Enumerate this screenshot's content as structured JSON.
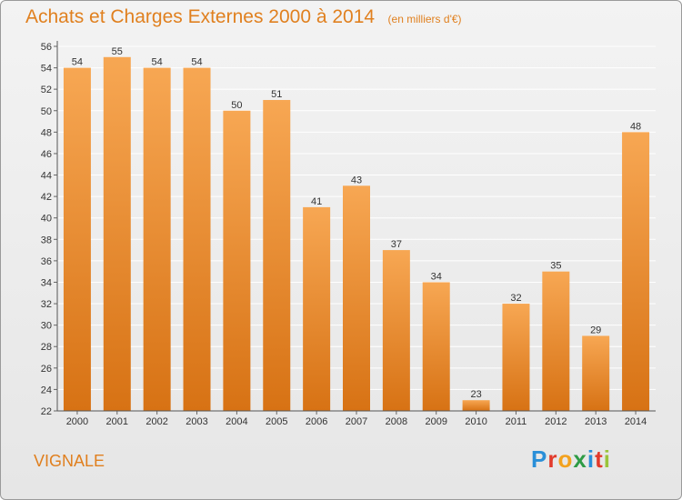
{
  "header": {
    "title": "Achats et Charges Externes 2000 à 2014",
    "subtitle": "(en milliers d'€)"
  },
  "footer": {
    "commune": "VIGNALE",
    "logo": "Proxiti"
  },
  "colors": {
    "bar_light": "#f7a753",
    "bar_dark": "#d77214",
    "title": "#e0801f",
    "grid": "#ffffff"
  },
  "chart_data": {
    "type": "bar",
    "title": "Achats et Charges Externes 2000 à 2014",
    "subtitle": "(en milliers d'€)",
    "categories": [
      "2000",
      "2001",
      "2002",
      "2003",
      "2004",
      "2005",
      "2006",
      "2007",
      "2008",
      "2009",
      "2010",
      "2011",
      "2012",
      "2013",
      "2014"
    ],
    "values": [
      54,
      55,
      54,
      54,
      50,
      51,
      41,
      43,
      37,
      34,
      23,
      32,
      35,
      29,
      48
    ],
    "ylim": [
      22,
      56
    ],
    "yticks": [
      22,
      24,
      26,
      28,
      30,
      32,
      34,
      36,
      38,
      40,
      42,
      44,
      46,
      48,
      50,
      52,
      54,
      56
    ],
    "grid": true,
    "data_labels": true,
    "xlabel": "",
    "ylabel": ""
  }
}
